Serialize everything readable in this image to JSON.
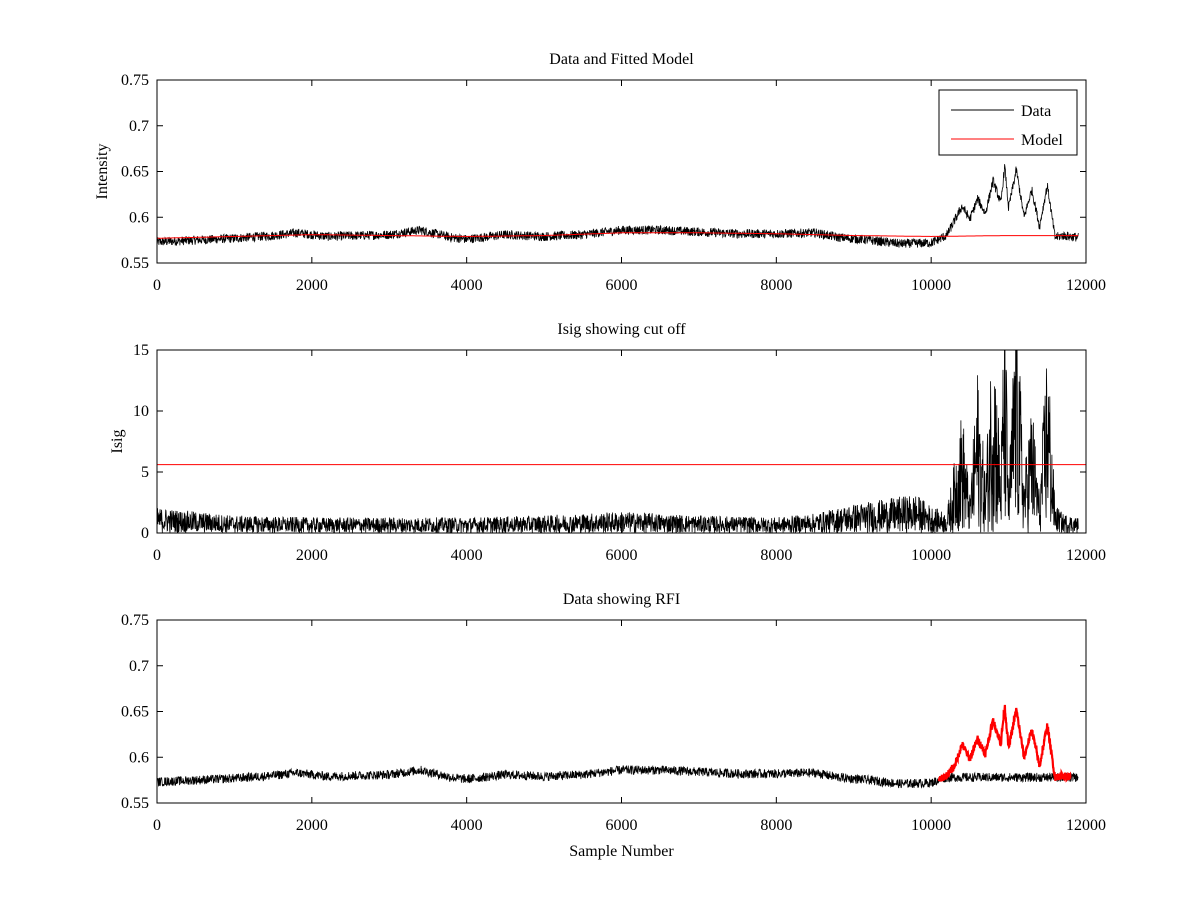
{
  "chart_data": [
    {
      "type": "line",
      "title": "Data and Fitted Model",
      "xlabel": "",
      "ylabel": "Intensity",
      "xlim": [
        0,
        12000
      ],
      "ylim": [
        0.55,
        0.75
      ],
      "xticks": [
        "0",
        "2000",
        "4000",
        "6000",
        "8000",
        "10000",
        "12000"
      ],
      "yticks": [
        "0.55",
        "0.6",
        "0.65",
        "0.7",
        "0.75"
      ],
      "legend": {
        "placement": "top-right",
        "entries": [
          "Data",
          "Model"
        ]
      },
      "series": [
        {
          "name": "Data",
          "color": "#000000",
          "x": [
            0,
            500,
            1000,
            1500,
            1800,
            2200,
            2600,
            3000,
            3400,
            3800,
            4000,
            4500,
            5000,
            5500,
            6000,
            6500,
            7000,
            7500,
            8000,
            8500,
            8800,
            9200,
            9600,
            10000,
            10200,
            10400,
            10500,
            10600,
            10700,
            10800,
            10900,
            10950,
            11000,
            11100,
            11200,
            11300,
            11400,
            11500,
            11600,
            11700,
            11900
          ],
          "values": [
            0.573,
            0.575,
            0.577,
            0.58,
            0.583,
            0.579,
            0.58,
            0.581,
            0.586,
            0.578,
            0.576,
            0.581,
            0.579,
            0.581,
            0.586,
            0.586,
            0.584,
            0.582,
            0.582,
            0.583,
            0.578,
            0.575,
            0.571,
            0.572,
            0.58,
            0.612,
            0.598,
            0.62,
            0.604,
            0.64,
            0.615,
            0.656,
            0.61,
            0.652,
            0.6,
            0.63,
            0.59,
            0.635,
            0.578,
            0.58,
            0.578
          ]
        },
        {
          "name": "Model",
          "color": "#ff0000",
          "x": [
            0,
            1000,
            2000,
            3000,
            4000,
            5000,
            6000,
            7000,
            8000,
            9000,
            10000,
            11000,
            11900
          ],
          "values": [
            0.577,
            0.579,
            0.581,
            0.58,
            0.579,
            0.58,
            0.583,
            0.583,
            0.582,
            0.58,
            0.579,
            0.58,
            0.58
          ]
        }
      ]
    },
    {
      "type": "line",
      "title": "Isig showing cut off",
      "xlabel": "",
      "ylabel": "Isig",
      "xlim": [
        0,
        12000
      ],
      "ylim": [
        0,
        15
      ],
      "xticks": [
        "0",
        "2000",
        "4000",
        "6000",
        "8000",
        "10000",
        "12000"
      ],
      "yticks": [
        "0",
        "5",
        "10",
        "15"
      ],
      "cutoff": 5.6,
      "series": [
        {
          "color": "#000000",
          "x": [
            0,
            500,
            1000,
            2000,
            3000,
            4000,
            5000,
            6000,
            7000,
            8000,
            8500,
            9000,
            9500,
            9800,
            10000,
            10200,
            10400,
            10500,
            10600,
            10700,
            10800,
            10900,
            10950,
            11000,
            11100,
            11200,
            11300,
            11400,
            11500,
            11600,
            11700,
            11900
          ],
          "values": [
            1.3,
            1.1,
            0.9,
            0.8,
            0.8,
            0.8,
            0.9,
            1.1,
            0.9,
            0.8,
            1.0,
            1.5,
            1.8,
            2.0,
            1.4,
            1.0,
            6.5,
            2.0,
            8.5,
            3.0,
            11.5,
            4.0,
            13.7,
            2.5,
            13.2,
            3.0,
            7.0,
            2.0,
            10.5,
            1.5,
            1.0,
            0.8
          ]
        }
      ]
    },
    {
      "type": "line",
      "title": "Data showing RFI",
      "xlabel": "Sample Number",
      "ylabel": "",
      "xlim": [
        0,
        12000
      ],
      "ylim": [
        0.55,
        0.75
      ],
      "xticks": [
        "0",
        "2000",
        "4000",
        "6000",
        "8000",
        "10000",
        "12000"
      ],
      "yticks": [
        "0.55",
        "0.6",
        "0.65",
        "0.7",
        "0.75"
      ],
      "series": [
        {
          "color": "#000000",
          "x": [
            0,
            500,
            1000,
            1500,
            1800,
            2200,
            2600,
            3000,
            3400,
            3800,
            4000,
            4500,
            5000,
            5500,
            6000,
            6500,
            7000,
            7500,
            8000,
            8500,
            8800,
            9200,
            9600,
            10000,
            10200,
            11900
          ],
          "values": [
            0.573,
            0.575,
            0.577,
            0.58,
            0.583,
            0.579,
            0.58,
            0.581,
            0.586,
            0.578,
            0.576,
            0.581,
            0.579,
            0.581,
            0.586,
            0.586,
            0.584,
            0.582,
            0.582,
            0.583,
            0.578,
            0.575,
            0.571,
            0.572,
            0.578,
            0.578
          ]
        },
        {
          "color": "#ff0000",
          "marker": "point",
          "x": [
            10100,
            10200,
            10300,
            10400,
            10500,
            10600,
            10700,
            10800,
            10900,
            10950,
            11000,
            11100,
            11200,
            11300,
            11400,
            11500,
            11600,
            11700,
            11800
          ],
          "values": [
            0.575,
            0.58,
            0.59,
            0.614,
            0.598,
            0.62,
            0.604,
            0.64,
            0.615,
            0.656,
            0.61,
            0.652,
            0.6,
            0.63,
            0.59,
            0.635,
            0.578,
            0.58,
            0.578
          ]
        }
      ]
    }
  ]
}
